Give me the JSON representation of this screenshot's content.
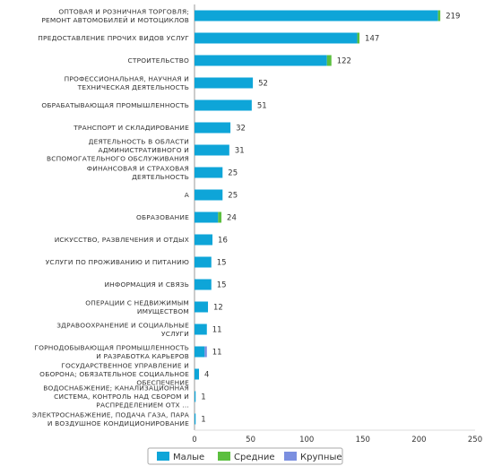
{
  "chart_data": {
    "type": "bar",
    "orientation": "horizontal",
    "stacked": true,
    "categories": [
      [
        "ОПТОВАЯ И РОЗНИЧНАЯ ТОРГОВЛЯ;",
        "РЕМОНТ АВТОМОБИЛЕЙ И МОТОЦИКЛОВ"
      ],
      [
        "ПРЕДОСТАВЛЕНИЕ ПРОЧИХ ВИДОВ УСЛУГ"
      ],
      [
        "СТРОИТЕЛЬСТВО"
      ],
      [
        "ПРОФЕССИОНАЛЬНАЯ, НАУЧНАЯ И",
        "ТЕХНИЧЕСКАЯ ДЕЯТЕЛЬНОСТЬ"
      ],
      [
        "ОБРАБАТЫВАЮЩАЯ ПРОМЫШЛЕННОСТЬ"
      ],
      [
        "ТРАНСПОРТ И СКЛАДИРОВАНИЕ"
      ],
      [
        "ДЕЯТЕЛЬНОСТЬ В ОБЛАСТИ",
        "АДМИНИСТРАТИВНОГО И",
        "ВСПОМОГАТЕЛЬНОГО ОБСЛУЖИВАНИЯ"
      ],
      [
        "ФИНАНСОВАЯ И СТРАХОВАЯ",
        "ДЕЯТЕЛЬНОСТЬ"
      ],
      [
        "А"
      ],
      [
        "ОБРАЗОВАНИЕ"
      ],
      [
        "ИСКУССТВО, РАЗВЛЕЧЕНИЯ И ОТДЫХ"
      ],
      [
        "УСЛУГИ ПО ПРОЖИВАНИЮ И ПИТАНИЮ"
      ],
      [
        "ИНФОРМАЦИЯ И СВЯЗЬ"
      ],
      [
        "ОПЕРАЦИИ С НЕДВИЖИМЫМ",
        "ИМУЩЕСТВОМ"
      ],
      [
        "ЗДРАВООХРАНЕНИЕ И СОЦИАЛЬНЫЕ",
        "УСЛУГИ"
      ],
      [
        "ГОРНОДОБЫВАЮЩАЯ ПРОМЫШЛЕННОСТЬ",
        "И РАЗРАБОТКА КАРЬЕРОВ"
      ],
      [
        "ГОСУДАРСТВЕННОЕ УПРАВЛЕНИЕ И",
        "ОБОРОНА; ОБЯЗАТЕЛЬНОЕ СОЦИАЛЬНОЕ",
        "ОБЕСПЕЧЕНИЕ"
      ],
      [
        "ВОДОСНАБЖЕНИЕ; КАНАЛИЗАЦИОННАЯ",
        "СИСТЕМА, КОНТРОЛЬ НАД СБОРОМ И",
        "РАСПРЕДЕЛЕНИЕМ ОТХ ..."
      ],
      [
        "ЭЛЕКТРОСНАБЖЕНИЕ, ПОДАЧА ГАЗА, ПАРА",
        "И ВОЗДУШНОЕ КОНДИЦИОНИРОВАНИЕ"
      ]
    ],
    "series": [
      {
        "name": "Малые",
        "color": "#0ea5d8",
        "values": [
          217,
          145,
          118,
          52,
          51,
          32,
          31,
          25,
          25,
          21,
          16,
          15,
          15,
          12,
          11,
          9,
          4,
          1,
          1
        ]
      },
      {
        "name": "Средние",
        "color": "#5bbf3e",
        "values": [
          2,
          2,
          4,
          0,
          0,
          0,
          0,
          0,
          0,
          3,
          0,
          0,
          0,
          0,
          0,
          0,
          0,
          0,
          0
        ]
      },
      {
        "name": "Крупные",
        "color": "#7b8fe0",
        "values": [
          0,
          0,
          0,
          0,
          0,
          0,
          0,
          0,
          0,
          0,
          0,
          0,
          0,
          0,
          0,
          2,
          0,
          0,
          0
        ]
      }
    ],
    "totals": [
      219,
      147,
      122,
      52,
      51,
      32,
      31,
      25,
      25,
      24,
      16,
      15,
      15,
      12,
      11,
      11,
      4,
      1,
      1
    ],
    "xticks": [
      0,
      50,
      100,
      150,
      200,
      250
    ],
    "xlim": [
      0,
      250
    ],
    "grid": false,
    "legend": "bottom"
  }
}
